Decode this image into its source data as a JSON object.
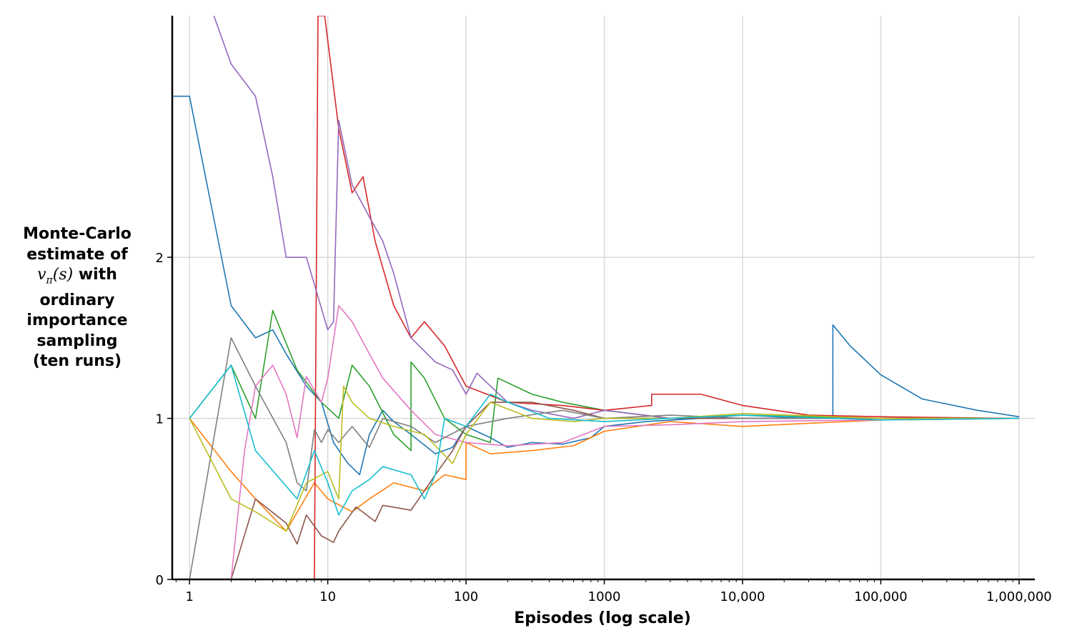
{
  "chart_data": {
    "type": "line",
    "xscale": "log",
    "xlim": [
      0.75,
      1300000
    ],
    "ylim": [
      0,
      3.5
    ],
    "grid": true,
    "legend": "none",
    "xlabel": "Episodes (log scale)",
    "ylabel": {
      "line1": "Monte-Carlo",
      "line2": "estimate of",
      "sym_v": "v",
      "sym_sub": "π",
      "sym_arg": "(s)",
      "line3_tail": " with",
      "line4": "ordinary",
      "line5": "importance",
      "line6": "sampling",
      "line7": "(ten runs)"
    },
    "x_ticks": [
      {
        "value": 1,
        "label": "1"
      },
      {
        "value": 10,
        "label": "10"
      },
      {
        "value": 100,
        "label": "100"
      },
      {
        "value": 1000,
        "label": "1000"
      },
      {
        "value": 10000,
        "label": "10,000"
      },
      {
        "value": 100000,
        "label": "100,000"
      },
      {
        "value": 1000000,
        "label": "1,000,000"
      }
    ],
    "y_ticks": [
      {
        "value": 0,
        "label": "0"
      },
      {
        "value": 1,
        "label": "1"
      },
      {
        "value": 2,
        "label": "2"
      }
    ],
    "series": [
      {
        "color": "#1f77b4",
        "points": [
          [
            0.75,
            3
          ],
          [
            1,
            3
          ],
          [
            2,
            1.7
          ],
          [
            3,
            1.5
          ],
          [
            4,
            1.55
          ],
          [
            5,
            1.4
          ],
          [
            7,
            1.2
          ],
          [
            9,
            1.1
          ],
          [
            11,
            0.85
          ],
          [
            14,
            0.72
          ],
          [
            17,
            0.65
          ],
          [
            20,
            0.9
          ],
          [
            25,
            1.05
          ],
          [
            30,
            0.98
          ],
          [
            40,
            0.9
          ],
          [
            60,
            0.78
          ],
          [
            80,
            0.82
          ],
          [
            100,
            0.95
          ],
          [
            150,
            0.88
          ],
          [
            200,
            0.82
          ],
          [
            300,
            0.85
          ],
          [
            500,
            0.84
          ],
          [
            800,
            0.88
          ],
          [
            1000,
            0.95
          ],
          [
            2000,
            0.98
          ],
          [
            5000,
            1.0
          ],
          [
            10000,
            1.02
          ],
          [
            30000,
            1.0
          ],
          [
            45000,
            1.0
          ],
          [
            45000,
            1.58
          ],
          [
            60000,
            1.45
          ],
          [
            100000,
            1.27
          ],
          [
            200000,
            1.12
          ],
          [
            500000,
            1.05
          ],
          [
            1000000,
            1.01
          ]
        ]
      },
      {
        "color": "#ff7f0e",
        "points": [
          [
            1,
            1
          ],
          [
            2,
            0.67
          ],
          [
            3,
            0.5
          ],
          [
            5,
            0.3
          ],
          [
            8,
            0.6
          ],
          [
            10,
            0.5
          ],
          [
            15,
            0.42
          ],
          [
            20,
            0.5
          ],
          [
            30,
            0.6
          ],
          [
            50,
            0.55
          ],
          [
            70,
            0.65
          ],
          [
            100,
            0.62
          ],
          [
            100,
            0.85
          ],
          [
            150,
            0.78
          ],
          [
            300,
            0.8
          ],
          [
            600,
            0.83
          ],
          [
            1000,
            0.92
          ],
          [
            3000,
            0.98
          ],
          [
            10000,
            0.95
          ],
          [
            100000,
            0.99
          ],
          [
            1000000,
            1.0
          ]
        ]
      },
      {
        "color": "#2ca02c",
        "points": [
          [
            1,
            1
          ],
          [
            2,
            1.33
          ],
          [
            3,
            1.0
          ],
          [
            4,
            1.67
          ],
          [
            6,
            1.3
          ],
          [
            9,
            1.1
          ],
          [
            12,
            1.0
          ],
          [
            15,
            1.33
          ],
          [
            20,
            1.2
          ],
          [
            30,
            0.9
          ],
          [
            40,
            0.8
          ],
          [
            40,
            1.35
          ],
          [
            50,
            1.25
          ],
          [
            70,
            1.0
          ],
          [
            100,
            0.9
          ],
          [
            150,
            0.85
          ],
          [
            170,
            1.25
          ],
          [
            300,
            1.15
          ],
          [
            500,
            1.1
          ],
          [
            1000,
            1.05
          ],
          [
            3000,
            1.0
          ],
          [
            10000,
            1.02
          ],
          [
            100000,
            1.0
          ],
          [
            1000000,
            1.0
          ]
        ]
      },
      {
        "color": "#d62728",
        "points": [
          [
            1,
            0
          ],
          [
            7.5,
            0
          ],
          [
            8,
            0
          ],
          [
            8.5,
            3.5
          ],
          [
            9.5,
            3.5
          ],
          [
            12,
            2.8
          ],
          [
            15,
            2.4
          ],
          [
            18,
            2.5
          ],
          [
            22,
            2.1
          ],
          [
            30,
            1.7
          ],
          [
            40,
            1.5
          ],
          [
            50,
            1.6
          ],
          [
            70,
            1.45
          ],
          [
            100,
            1.2
          ],
          [
            200,
            1.1
          ],
          [
            500,
            1.08
          ],
          [
            1000,
            1.05
          ],
          [
            2200,
            1.08
          ],
          [
            2200,
            1.15
          ],
          [
            5000,
            1.15
          ],
          [
            10000,
            1.08
          ],
          [
            30000,
            1.02
          ],
          [
            100000,
            1.01
          ],
          [
            1000000,
            1.0
          ]
        ]
      },
      {
        "color": "#9467bd",
        "points": [
          [
            1.5,
            3.5
          ],
          [
            2,
            3.2
          ],
          [
            3,
            3.0
          ],
          [
            4,
            2.5
          ],
          [
            5,
            2.0
          ],
          [
            7,
            2.0
          ],
          [
            10,
            1.55
          ],
          [
            11,
            1.6
          ],
          [
            12,
            2.85
          ],
          [
            15,
            2.45
          ],
          [
            20,
            2.25
          ],
          [
            25,
            2.1
          ],
          [
            30,
            1.9
          ],
          [
            40,
            1.5
          ],
          [
            60,
            1.35
          ],
          [
            80,
            1.3
          ],
          [
            100,
            1.15
          ],
          [
            120,
            1.28
          ],
          [
            200,
            1.1
          ],
          [
            300,
            1.05
          ],
          [
            600,
            1.0
          ],
          [
            1000,
            1.05
          ],
          [
            3000,
            1.0
          ],
          [
            10000,
            1.0
          ],
          [
            100000,
            1.0
          ],
          [
            1000000,
            1.0
          ]
        ]
      },
      {
        "color": "#8c564b",
        "points": [
          [
            1,
            0
          ],
          [
            2,
            0
          ],
          [
            3,
            0.5
          ],
          [
            5,
            0.35
          ],
          [
            6,
            0.22
          ],
          [
            7,
            0.4
          ],
          [
            9,
            0.27
          ],
          [
            11,
            0.23
          ],
          [
            12,
            0.3
          ],
          [
            16,
            0.45
          ],
          [
            22,
            0.36
          ],
          [
            25,
            0.46
          ],
          [
            40,
            0.43
          ],
          [
            60,
            0.65
          ],
          [
            80,
            0.8
          ],
          [
            100,
            0.95
          ],
          [
            150,
            1.1
          ],
          [
            300,
            1.1
          ],
          [
            600,
            1.05
          ],
          [
            1000,
            1.0
          ],
          [
            3000,
            1.0
          ],
          [
            10000,
            1.0
          ],
          [
            100000,
            1.0
          ],
          [
            1000000,
            1.0
          ]
        ]
      },
      {
        "color": "#e377c2",
        "points": [
          [
            1,
            0
          ],
          [
            2,
            0
          ],
          [
            2.5,
            0.8
          ],
          [
            3,
            1.2
          ],
          [
            4,
            1.33
          ],
          [
            5,
            1.15
          ],
          [
            6,
            0.88
          ],
          [
            7,
            1.26
          ],
          [
            9,
            1.1
          ],
          [
            10,
            1.25
          ],
          [
            12,
            1.7
          ],
          [
            15,
            1.6
          ],
          [
            20,
            1.4
          ],
          [
            25,
            1.25
          ],
          [
            40,
            1.05
          ],
          [
            60,
            0.9
          ],
          [
            100,
            0.85
          ],
          [
            200,
            0.83
          ],
          [
            500,
            0.85
          ],
          [
            1000,
            0.95
          ],
          [
            3000,
            0.96
          ],
          [
            10000,
            0.98
          ],
          [
            100000,
            0.99
          ],
          [
            1000000,
            1.0
          ]
        ]
      },
      {
        "color": "#7f7f7f",
        "points": [
          [
            1,
            0
          ],
          [
            2,
            1.5
          ],
          [
            3,
            1.2
          ],
          [
            5,
            0.85
          ],
          [
            6,
            0.6
          ],
          [
            7,
            0.55
          ],
          [
            8,
            0.93
          ],
          [
            9,
            0.85
          ],
          [
            10,
            0.93
          ],
          [
            12,
            0.85
          ],
          [
            15,
            0.95
          ],
          [
            20,
            0.82
          ],
          [
            25,
            1.0
          ],
          [
            40,
            0.95
          ],
          [
            60,
            0.85
          ],
          [
            100,
            0.95
          ],
          [
            200,
            1.0
          ],
          [
            500,
            1.05
          ],
          [
            1000,
            1.0
          ],
          [
            3000,
            1.02
          ],
          [
            10000,
            1.0
          ],
          [
            100000,
            1.0
          ],
          [
            1000000,
            1.0
          ]
        ]
      },
      {
        "color": "#bcbd22",
        "points": [
          [
            1,
            1
          ],
          [
            2,
            0.5
          ],
          [
            3,
            0.42
          ],
          [
            5,
            0.3
          ],
          [
            7,
            0.6
          ],
          [
            10,
            0.67
          ],
          [
            12,
            0.5
          ],
          [
            13,
            1.2
          ],
          [
            15,
            1.1
          ],
          [
            20,
            1.0
          ],
          [
            30,
            0.95
          ],
          [
            50,
            0.9
          ],
          [
            80,
            0.72
          ],
          [
            100,
            0.9
          ],
          [
            150,
            1.1
          ],
          [
            300,
            1.0
          ],
          [
            600,
            0.98
          ],
          [
            1000,
            1.0
          ],
          [
            3000,
            1.0
          ],
          [
            10000,
            1.03
          ],
          [
            100000,
            1.0
          ],
          [
            1000000,
            1.0
          ]
        ]
      },
      {
        "color": "#17becf",
        "points": [
          [
            1,
            1
          ],
          [
            2,
            1.33
          ],
          [
            3,
            0.8
          ],
          [
            6,
            0.5
          ],
          [
            8,
            0.8
          ],
          [
            10,
            0.6
          ],
          [
            12,
            0.4
          ],
          [
            15,
            0.55
          ],
          [
            20,
            0.62
          ],
          [
            25,
            0.7
          ],
          [
            40,
            0.65
          ],
          [
            50,
            0.5
          ],
          [
            60,
            0.65
          ],
          [
            70,
            1.0
          ],
          [
            100,
            0.95
          ],
          [
            150,
            1.15
          ],
          [
            200,
            1.1
          ],
          [
            400,
            1.0
          ],
          [
            1000,
            0.98
          ],
          [
            3000,
            1.0
          ],
          [
            10000,
            1.02
          ],
          [
            100000,
            0.99
          ],
          [
            1000000,
            1.0
          ]
        ]
      }
    ]
  }
}
